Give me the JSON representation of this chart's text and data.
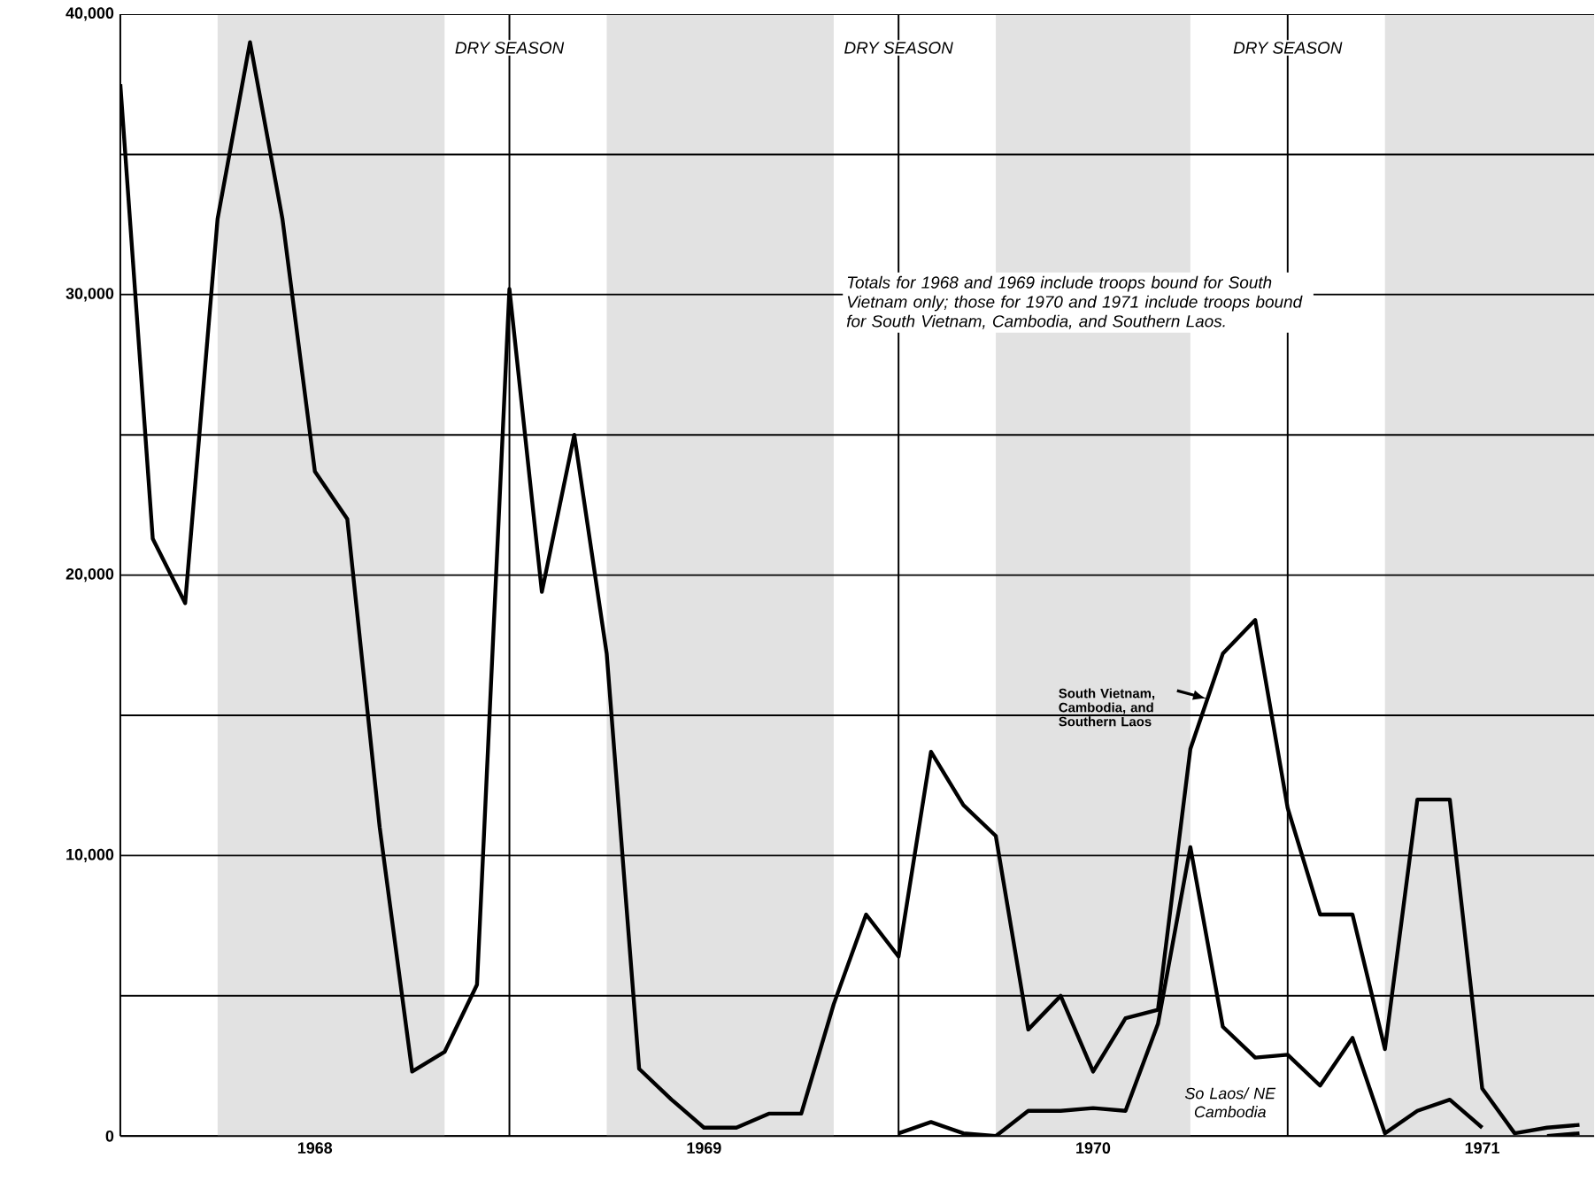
{
  "chart_data": {
    "type": "line",
    "x": [
      "1968-01",
      "1968-02",
      "1968-03",
      "1968-04",
      "1968-05",
      "1968-06",
      "1968-07",
      "1968-08",
      "1968-09",
      "1968-10",
      "1968-11",
      "1968-12",
      "1969-01",
      "1969-02",
      "1969-03",
      "1969-04",
      "1969-05",
      "1969-06",
      "1969-07",
      "1969-08",
      "1969-09",
      "1969-10",
      "1969-11",
      "1969-12",
      "1970-01",
      "1970-02",
      "1970-03",
      "1970-04",
      "1970-05",
      "1970-06",
      "1970-07",
      "1970-08",
      "1970-09",
      "1970-10",
      "1970-11",
      "1970-12",
      "1971-01",
      "1971-02",
      "1971-03",
      "1971-04",
      "1971-05",
      "1971-06",
      "1971-07",
      "1971-08",
      "1971-09",
      "1971-10"
    ],
    "series": [
      {
        "name": "South Vietnam, Cambodia, and Southern Laos",
        "color": "#000000",
        "values": [
          37500,
          21300,
          19000,
          32700,
          39000,
          32700,
          23700,
          22000,
          11000,
          2300,
          3000,
          5400,
          30200,
          19400,
          25000,
          17200,
          2400,
          1300,
          300,
          300,
          800,
          800,
          4700,
          7900,
          6400,
          13700,
          11800,
          10700,
          3800,
          5000,
          2300,
          4200,
          4500,
          13800,
          17200,
          18400,
          11700,
          7900,
          7900,
          3100,
          12000,
          12000,
          1700,
          100,
          300,
          400
        ]
      },
      {
        "name": "So Laos/ NE Cambodia",
        "color": "#000000",
        "values": [
          null,
          null,
          null,
          null,
          null,
          null,
          null,
          null,
          null,
          null,
          null,
          null,
          null,
          null,
          null,
          null,
          null,
          null,
          null,
          null,
          null,
          null,
          null,
          null,
          100,
          500,
          100,
          0,
          900,
          900,
          1000,
          900,
          4000,
          10300,
          3900,
          2800,
          2900,
          1800,
          3500,
          100,
          900,
          1300,
          300,
          null,
          0,
          100
        ]
      }
    ],
    "xlim": [
      "1968-01",
      "1971-10-15"
    ],
    "xticks": [
      {
        "value": "1968-07",
        "label": "1968"
      },
      {
        "value": "1969-07",
        "label": "1969"
      },
      {
        "value": "1970-07",
        "label": "1970"
      },
      {
        "value": "1971-07",
        "label": "1971"
      }
    ],
    "ylim": [
      0,
      40000
    ],
    "yticks": [
      0,
      {
        "value": 5000,
        "label": null
      },
      {
        "value": 10000,
        "label": "10,000"
      },
      {
        "value": 15000,
        "label": null
      },
      {
        "value": 20000,
        "label": "20,000"
      },
      {
        "value": 25000,
        "label": null
      },
      {
        "value": 30000,
        "label": "30,000"
      },
      {
        "value": 35000,
        "label": null
      },
      {
        "value": 40000,
        "label": "40,000"
      }
    ],
    "grid": "y",
    "ref_lines": [
      {
        "axis": "x",
        "value": "1969-01"
      },
      {
        "axis": "x",
        "value": "1970-01"
      },
      {
        "axis": "x",
        "value": "1971-01"
      }
    ],
    "bands": [
      {
        "axis": "x",
        "from": "1968-04",
        "to": "1968-11",
        "color": "#e2e2e2"
      },
      {
        "axis": "x",
        "from": "1969-04",
        "to": "1969-11",
        "color": "#e2e2e2"
      },
      {
        "axis": "x",
        "from": "1970-04",
        "to": "1970-10",
        "color": "#e2e2e2"
      },
      {
        "axis": "x",
        "from": "1971-04",
        "to": "1971-10-15",
        "color": "#e2e2e2"
      }
    ],
    "annotations": [
      {
        "text": "DRY SEASON",
        "x": "1969-01",
        "y": 38800
      },
      {
        "text": "DRY SEASON",
        "x": "1970-01",
        "y": 38800
      },
      {
        "text": "DRY SEASON",
        "x": "1971-01",
        "y": 38800
      },
      "Totals for 1968 and 1969 include troops bound for South Vietnam only; those for 1970 and 1971 include troops bound for South Vietnam, Cambodia, and Southern Laos."
    ]
  }
}
